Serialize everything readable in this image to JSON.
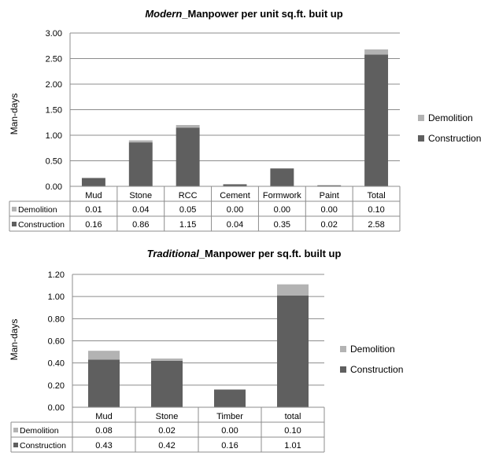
{
  "colors": {
    "construction": "#5f5f5f",
    "demolition": "#b3b3b3",
    "grid": "#8c8c8c"
  },
  "legend_labels": {
    "demolition": "Demolition",
    "construction": "Construction"
  },
  "chart_data": [
    {
      "type": "bar",
      "stacked": true,
      "title_italic": "Modern",
      "title_rest": "_Manpower per unit sq.ft. buit up",
      "xlabel": "",
      "ylabel": "Man-days",
      "ylim": [
        0,
        3.0
      ],
      "yticks": [
        "0.00",
        "0.50",
        "1.00",
        "1.50",
        "2.00",
        "2.50",
        "3.00"
      ],
      "categories": [
        "Mud",
        "Stone",
        "RCC",
        "Cement",
        "Formwork",
        "Paint",
        "Total"
      ],
      "series": [
        {
          "name": "Demolition",
          "values": [
            0.01,
            0.04,
            0.05,
            0.0,
            0.0,
            0.0,
            0.1
          ],
          "labels": [
            "0.01",
            "0.04",
            "0.05",
            "0.00",
            "0.00",
            "0.00",
            "0.10"
          ]
        },
        {
          "name": "Construction",
          "values": [
            0.16,
            0.86,
            1.15,
            0.04,
            0.35,
            0.02,
            2.58
          ],
          "labels": [
            "0.16",
            "0.86",
            "1.15",
            "0.04",
            "0.35",
            "0.02",
            "2.58"
          ]
        }
      ],
      "legend": "right",
      "grid": true
    },
    {
      "type": "bar",
      "stacked": true,
      "title_italic": "Traditional",
      "title_rest": "_Manpower per sq.ft. built up",
      "xlabel": "",
      "ylabel": "Man-days",
      "ylim": [
        0,
        1.2
      ],
      "yticks": [
        "0.00",
        "0.20",
        "0.40",
        "0.60",
        "0.80",
        "1.00",
        "1.20"
      ],
      "categories": [
        "Mud",
        "Stone",
        "Timber",
        "total"
      ],
      "series": [
        {
          "name": "Demolition",
          "values": [
            0.08,
            0.02,
            0.0,
            0.1
          ],
          "labels": [
            "0.08",
            "0.02",
            "0.00",
            "0.10"
          ]
        },
        {
          "name": "Construction",
          "values": [
            0.43,
            0.42,
            0.16,
            1.01
          ],
          "labels": [
            "0.43",
            "0.42",
            "0.16",
            "1.01"
          ]
        }
      ],
      "legend": "right",
      "grid": true
    }
  ]
}
